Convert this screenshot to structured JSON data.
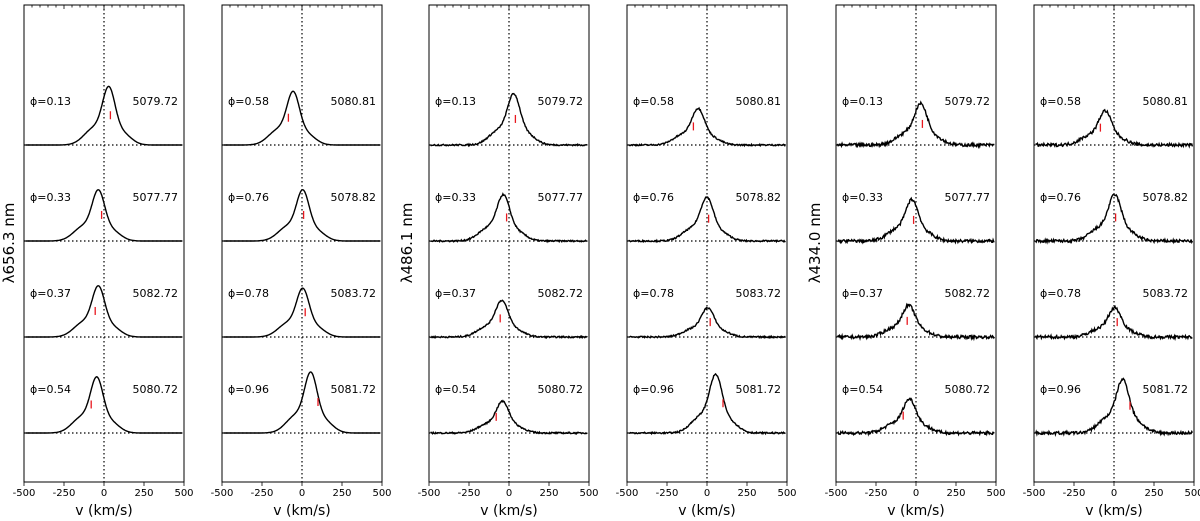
{
  "chart_data": {
    "type": "line",
    "title": "",
    "xlabel": "v (km/s)",
    "xlim": [
      -500,
      500
    ],
    "xticks": [
      -500,
      -250,
      0,
      250,
      500
    ],
    "xtick_labels": [
      "-500",
      "-250",
      "0",
      "250",
      "500"
    ],
    "ylabel_pairs": [
      {
        "pair": 0,
        "label": "λ656.3 nm"
      },
      {
        "pair": 1,
        "label": "λ486.1 nm"
      },
      {
        "pair": 2,
        "label": "λ434.0 nm"
      }
    ],
    "panels": [
      {
        "line": "656.3",
        "noise": 0.0,
        "spectra": [
          {
            "phase": "ϕ=0.13",
            "date": "5079.72",
            "marker_v": 40,
            "peak_v": 30,
            "peak_h": 48
          },
          {
            "phase": "ϕ=0.33",
            "date": "5077.77",
            "marker_v": -15,
            "peak_v": -35,
            "peak_h": 42
          },
          {
            "phase": "ϕ=0.37",
            "date": "5082.72",
            "marker_v": -55,
            "peak_v": -35,
            "peak_h": 42
          },
          {
            "phase": "ϕ=0.54",
            "date": "5080.72",
            "marker_v": -80,
            "peak_v": -45,
            "peak_h": 46
          }
        ]
      },
      {
        "line": "656.3",
        "noise": 0.0,
        "spectra": [
          {
            "phase": "ϕ=0.58",
            "date": "5080.81",
            "marker_v": -85,
            "peak_v": -55,
            "peak_h": 44
          },
          {
            "phase": "ϕ=0.76",
            "date": "5078.82",
            "marker_v": 10,
            "peak_v": 5,
            "peak_h": 42
          },
          {
            "phase": "ϕ=0.78",
            "date": "5083.72",
            "marker_v": 20,
            "peak_v": 5,
            "peak_h": 40
          },
          {
            "phase": "ϕ=0.96",
            "date": "5081.72",
            "marker_v": 100,
            "peak_v": 55,
            "peak_h": 50
          }
        ]
      },
      {
        "line": "486.1",
        "noise": 1.5,
        "spectra": [
          {
            "phase": "ϕ=0.13",
            "date": "5079.72",
            "marker_v": 40,
            "peak_v": 30,
            "peak_h": 42
          },
          {
            "phase": "ϕ=0.33",
            "date": "5077.77",
            "marker_v": -15,
            "peak_v": -35,
            "peak_h": 38
          },
          {
            "phase": "ϕ=0.37",
            "date": "5082.72",
            "marker_v": -55,
            "peak_v": -45,
            "peak_h": 30
          },
          {
            "phase": "ϕ=0.54",
            "date": "5080.72",
            "marker_v": -80,
            "peak_v": -40,
            "peak_h": 26
          }
        ]
      },
      {
        "line": "486.1",
        "noise": 1.5,
        "spectra": [
          {
            "phase": "ϕ=0.58",
            "date": "5080.81",
            "marker_v": -85,
            "peak_v": -55,
            "peak_h": 30
          },
          {
            "phase": "ϕ=0.76",
            "date": "5078.82",
            "marker_v": 10,
            "peak_v": 0,
            "peak_h": 36
          },
          {
            "phase": "ϕ=0.78",
            "date": "5083.72",
            "marker_v": 20,
            "peak_v": 5,
            "peak_h": 24
          },
          {
            "phase": "ϕ=0.96",
            "date": "5081.72",
            "marker_v": 100,
            "peak_v": 55,
            "peak_h": 48
          }
        ]
      },
      {
        "line": "434.0",
        "noise": 3.0,
        "spectra": [
          {
            "phase": "ϕ=0.13",
            "date": "5079.72",
            "marker_v": 40,
            "peak_v": 30,
            "peak_h": 34
          },
          {
            "phase": "ϕ=0.33",
            "date": "5077.77",
            "marker_v": -15,
            "peak_v": -25,
            "peak_h": 34
          },
          {
            "phase": "ϕ=0.37",
            "date": "5082.72",
            "marker_v": -55,
            "peak_v": -45,
            "peak_h": 26
          },
          {
            "phase": "ϕ=0.54",
            "date": "5080.72",
            "marker_v": -80,
            "peak_v": -40,
            "peak_h": 28
          }
        ]
      },
      {
        "line": "434.0",
        "noise": 3.0,
        "spectra": [
          {
            "phase": "ϕ=0.58",
            "date": "5080.81",
            "marker_v": -85,
            "peak_v": -55,
            "peak_h": 28
          },
          {
            "phase": "ϕ=0.76",
            "date": "5078.82",
            "marker_v": 10,
            "peak_v": 5,
            "peak_h": 38
          },
          {
            "phase": "ϕ=0.78",
            "date": "5083.72",
            "marker_v": 20,
            "peak_v": 5,
            "peak_h": 24
          },
          {
            "phase": "ϕ=0.96",
            "date": "5081.72",
            "marker_v": 100,
            "peak_v": 55,
            "peak_h": 44
          }
        ]
      }
    ]
  },
  "colors": {
    "spectrum": "#000000",
    "marker": "#e8181f",
    "zero_line": "#000000",
    "frame": "#000000"
  }
}
